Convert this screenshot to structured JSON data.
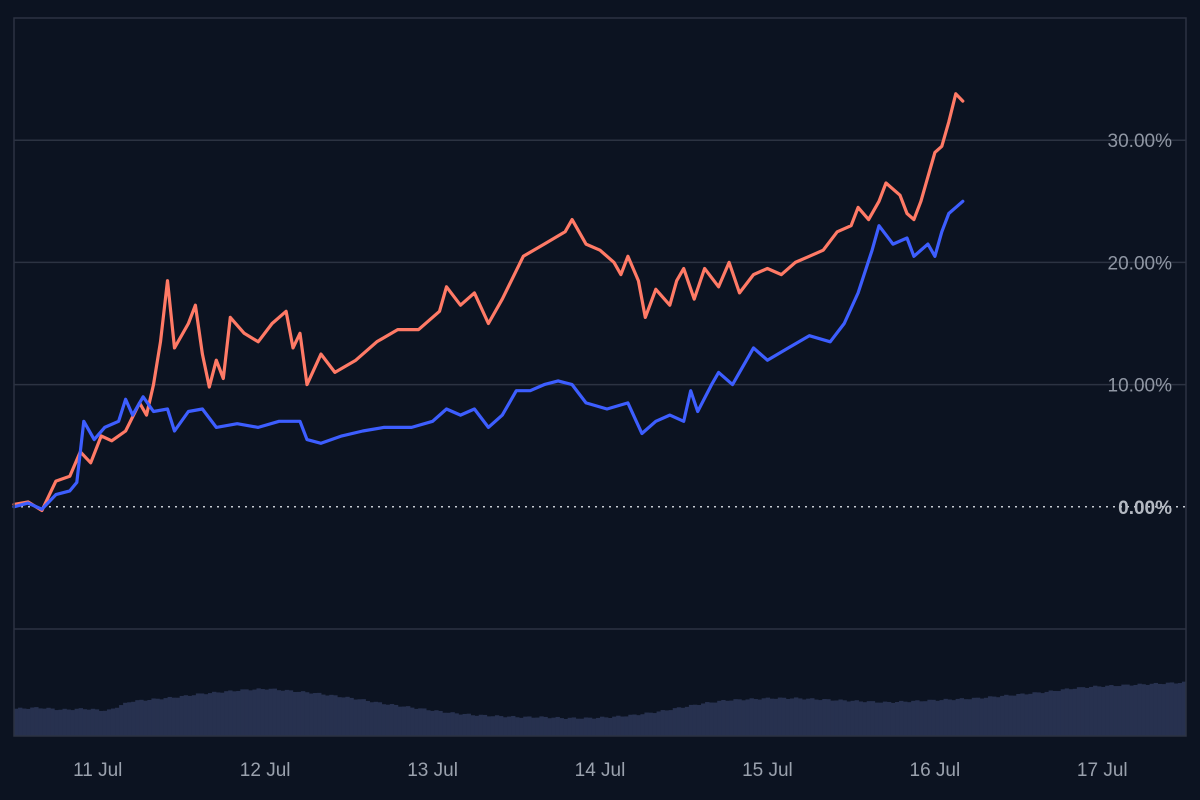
{
  "chart_data": {
    "type": "line",
    "x_ticks": [
      "11 Jul",
      "12 Jul",
      "13 Jul",
      "14 Jul",
      "15 Jul",
      "16 Jul",
      "17 Jul"
    ],
    "y_unit": "%",
    "ylim": [
      -10,
      40
    ],
    "y_ticks": [
      {
        "value": 30,
        "label": "30.00%"
      },
      {
        "value": 20,
        "label": "20.00%"
      },
      {
        "value": 10,
        "label": "10.00%"
      },
      {
        "value": 0,
        "label": "0.00%"
      }
    ],
    "xlim": [
      "2024-07-10 12:00",
      "2024-07-17 12:00"
    ],
    "series": [
      {
        "color": "#ff7a66",
        "points": [
          [
            "2024-07-10 12:00",
            0.2
          ],
          [
            "2024-07-10 14:00",
            0.4
          ],
          [
            "2024-07-10 16:00",
            -0.3
          ],
          [
            "2024-07-10 18:00",
            2.1
          ],
          [
            "2024-07-10 20:00",
            2.5
          ],
          [
            "2024-07-10 21:30",
            4.5
          ],
          [
            "2024-07-10 23:00",
            3.6
          ],
          [
            "2024-07-11 00:30",
            5.8
          ],
          [
            "2024-07-11 02:00",
            5.4
          ],
          [
            "2024-07-11 04:00",
            6.2
          ],
          [
            "2024-07-11 06:00",
            8.5
          ],
          [
            "2024-07-11 07:00",
            7.5
          ],
          [
            "2024-07-11 08:00",
            10.0
          ],
          [
            "2024-07-11 09:00",
            13.5
          ],
          [
            "2024-07-11 10:00",
            18.5
          ],
          [
            "2024-07-11 11:00",
            13.0
          ],
          [
            "2024-07-11 13:00",
            15.0
          ],
          [
            "2024-07-11 14:00",
            16.5
          ],
          [
            "2024-07-11 15:00",
            12.5
          ],
          [
            "2024-07-11 16:00",
            9.8
          ],
          [
            "2024-07-11 17:00",
            12.0
          ],
          [
            "2024-07-11 18:00",
            10.5
          ],
          [
            "2024-07-11 19:00",
            15.5
          ],
          [
            "2024-07-11 21:00",
            14.2
          ],
          [
            "2024-07-11 23:00",
            13.5
          ],
          [
            "2024-07-12 01:00",
            15.0
          ],
          [
            "2024-07-12 03:00",
            16.0
          ],
          [
            "2024-07-12 04:00",
            13.0
          ],
          [
            "2024-07-12 05:00",
            14.2
          ],
          [
            "2024-07-12 06:00",
            10.0
          ],
          [
            "2024-07-12 08:00",
            12.5
          ],
          [
            "2024-07-12 10:00",
            11.0
          ],
          [
            "2024-07-12 13:00",
            12.0
          ],
          [
            "2024-07-12 16:00",
            13.5
          ],
          [
            "2024-07-12 19:00",
            14.5
          ],
          [
            "2024-07-12 22:00",
            14.5
          ],
          [
            "2024-07-13 01:00",
            16.0
          ],
          [
            "2024-07-13 02:00",
            18.0
          ],
          [
            "2024-07-13 04:00",
            16.5
          ],
          [
            "2024-07-13 06:00",
            17.5
          ],
          [
            "2024-07-13 08:00",
            15.0
          ],
          [
            "2024-07-13 10:00",
            17.0
          ],
          [
            "2024-07-13 13:00",
            20.5
          ],
          [
            "2024-07-13 16:00",
            21.5
          ],
          [
            "2024-07-13 19:00",
            22.5
          ],
          [
            "2024-07-13 20:00",
            23.5
          ],
          [
            "2024-07-13 22:00",
            21.5
          ],
          [
            "2024-07-14 00:00",
            21.0
          ],
          [
            "2024-07-14 02:00",
            20.0
          ],
          [
            "2024-07-14 03:00",
            19.0
          ],
          [
            "2024-07-14 04:00",
            20.5
          ],
          [
            "2024-07-14 05:30",
            18.5
          ],
          [
            "2024-07-14 06:30",
            15.5
          ],
          [
            "2024-07-14 08:00",
            17.8
          ],
          [
            "2024-07-14 10:00",
            16.5
          ],
          [
            "2024-07-14 11:00",
            18.5
          ],
          [
            "2024-07-14 12:00",
            19.5
          ],
          [
            "2024-07-14 13:30",
            17.0
          ],
          [
            "2024-07-14 15:00",
            19.5
          ],
          [
            "2024-07-14 17:00",
            18.0
          ],
          [
            "2024-07-14 18:30",
            20.0
          ],
          [
            "2024-07-14 20:00",
            17.5
          ],
          [
            "2024-07-14 22:00",
            19.0
          ],
          [
            "2024-07-15 00:00",
            19.5
          ],
          [
            "2024-07-15 02:00",
            19.0
          ],
          [
            "2024-07-15 04:00",
            20.0
          ],
          [
            "2024-07-15 06:00",
            20.5
          ],
          [
            "2024-07-15 08:00",
            21.0
          ],
          [
            "2024-07-15 10:00",
            22.5
          ],
          [
            "2024-07-15 12:00",
            23.0
          ],
          [
            "2024-07-15 13:00",
            24.5
          ],
          [
            "2024-07-15 14:30",
            23.5
          ],
          [
            "2024-07-15 16:00",
            25.0
          ],
          [
            "2024-07-15 17:00",
            26.5
          ],
          [
            "2024-07-15 19:00",
            25.5
          ],
          [
            "2024-07-15 20:00",
            24.0
          ],
          [
            "2024-07-15 21:00",
            23.5
          ],
          [
            "2024-07-15 22:00",
            25.0
          ],
          [
            "2024-07-16 00:00",
            29.0
          ],
          [
            "2024-07-16 01:00",
            29.5
          ],
          [
            "2024-07-16 02:00",
            31.5
          ],
          [
            "2024-07-16 03:00",
            33.8
          ],
          [
            "2024-07-16 04:00",
            33.2
          ]
        ]
      },
      {
        "color": "#3d5eff",
        "points": [
          [
            "2024-07-10 12:00",
            0.0
          ],
          [
            "2024-07-10 14:00",
            0.3
          ],
          [
            "2024-07-10 16:00",
            -0.2
          ],
          [
            "2024-07-10 18:00",
            1.0
          ],
          [
            "2024-07-10 20:00",
            1.3
          ],
          [
            "2024-07-10 21:00",
            2.0
          ],
          [
            "2024-07-10 22:00",
            7.0
          ],
          [
            "2024-07-10 23:30",
            5.5
          ],
          [
            "2024-07-11 01:00",
            6.5
          ],
          [
            "2024-07-11 03:00",
            7.0
          ],
          [
            "2024-07-11 04:00",
            8.8
          ],
          [
            "2024-07-11 05:00",
            7.5
          ],
          [
            "2024-07-11 06:30",
            9.0
          ],
          [
            "2024-07-11 08:00",
            7.8
          ],
          [
            "2024-07-11 10:00",
            8.0
          ],
          [
            "2024-07-11 11:00",
            6.2
          ],
          [
            "2024-07-11 13:00",
            7.8
          ],
          [
            "2024-07-11 15:00",
            8.0
          ],
          [
            "2024-07-11 17:00",
            6.5
          ],
          [
            "2024-07-11 20:00",
            6.8
          ],
          [
            "2024-07-11 23:00",
            6.5
          ],
          [
            "2024-07-12 02:00",
            7.0
          ],
          [
            "2024-07-12 05:00",
            7.0
          ],
          [
            "2024-07-12 06:00",
            5.5
          ],
          [
            "2024-07-12 08:00",
            5.2
          ],
          [
            "2024-07-12 11:00",
            5.8
          ],
          [
            "2024-07-12 14:00",
            6.2
          ],
          [
            "2024-07-12 17:00",
            6.5
          ],
          [
            "2024-07-12 21:00",
            6.5
          ],
          [
            "2024-07-13 00:00",
            7.0
          ],
          [
            "2024-07-13 02:00",
            8.0
          ],
          [
            "2024-07-13 04:00",
            7.5
          ],
          [
            "2024-07-13 06:00",
            8.0
          ],
          [
            "2024-07-13 08:00",
            6.5
          ],
          [
            "2024-07-13 10:00",
            7.5
          ],
          [
            "2024-07-13 12:00",
            9.5
          ],
          [
            "2024-07-13 14:00",
            9.5
          ],
          [
            "2024-07-13 16:00",
            10.0
          ],
          [
            "2024-07-13 18:00",
            10.3
          ],
          [
            "2024-07-13 20:00",
            10.0
          ],
          [
            "2024-07-13 22:00",
            8.5
          ],
          [
            "2024-07-14 01:00",
            8.0
          ],
          [
            "2024-07-14 04:00",
            8.5
          ],
          [
            "2024-07-14 06:00",
            6.0
          ],
          [
            "2024-07-14 08:00",
            7.0
          ],
          [
            "2024-07-14 10:00",
            7.5
          ],
          [
            "2024-07-14 12:00",
            7.0
          ],
          [
            "2024-07-14 13:00",
            9.5
          ],
          [
            "2024-07-14 14:00",
            7.8
          ],
          [
            "2024-07-14 16:00",
            10.0
          ],
          [
            "2024-07-14 17:00",
            11.0
          ],
          [
            "2024-07-14 19:00",
            10.0
          ],
          [
            "2024-07-14 21:00",
            12.0
          ],
          [
            "2024-07-14 22:00",
            13.0
          ],
          [
            "2024-07-15 00:00",
            12.0
          ],
          [
            "2024-07-15 03:00",
            13.0
          ],
          [
            "2024-07-15 06:00",
            14.0
          ],
          [
            "2024-07-15 09:00",
            13.5
          ],
          [
            "2024-07-15 11:00",
            15.0
          ],
          [
            "2024-07-15 13:00",
            17.5
          ],
          [
            "2024-07-15 15:00",
            21.0
          ],
          [
            "2024-07-15 16:00",
            23.0
          ],
          [
            "2024-07-15 18:00",
            21.5
          ],
          [
            "2024-07-15 20:00",
            22.0
          ],
          [
            "2024-07-15 21:00",
            20.5
          ],
          [
            "2024-07-15 23:00",
            21.5
          ],
          [
            "2024-07-16 00:00",
            20.5
          ],
          [
            "2024-07-16 01:00",
            22.5
          ],
          [
            "2024-07-16 02:00",
            24.0
          ],
          [
            "2024-07-16 03:00",
            24.5
          ],
          [
            "2024-07-16 04:00",
            25.0
          ]
        ]
      }
    ],
    "volume": {
      "color": "#27314f",
      "values": [
        26,
        27,
        25,
        26,
        24,
        33,
        35,
        37,
        40,
        42,
        44,
        45,
        43,
        41,
        38,
        35,
        31,
        28,
        25,
        22,
        20,
        19,
        18,
        18,
        17,
        17,
        18,
        20,
        23,
        27,
        31,
        34,
        35,
        36,
        36,
        35,
        34,
        33,
        32,
        33,
        34,
        35,
        36,
        38,
        40,
        42,
        45,
        47,
        48,
        49,
        50,
        51
      ]
    },
    "grid": true,
    "legend": "none"
  }
}
